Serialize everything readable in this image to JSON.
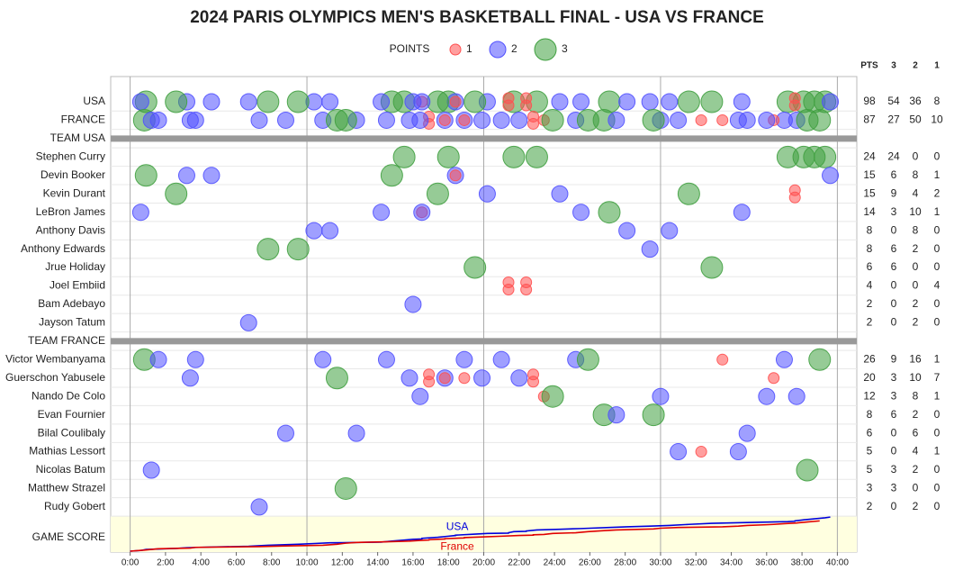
{
  "chart_data": {
    "type": "bubble-timeline",
    "title": "2024 PARIS OLYMPICS MEN'S BASKETBALL FINAL - USA VS FRANCE",
    "legend": {
      "title": "POINTS",
      "items": [
        {
          "value": 1,
          "color": "#ff5050"
        },
        {
          "value": 2,
          "color": "#5050ff"
        },
        {
          "value": 3,
          "color": "#40a040"
        }
      ]
    },
    "columns": [
      "PTS",
      "3",
      "2",
      "1"
    ],
    "xlim": [
      -1.1,
      41.1
    ],
    "xticks": [
      {
        "value": 0,
        "label": "0:00"
      },
      {
        "value": 2,
        "label": "2:00"
      },
      {
        "value": 4,
        "label": "4:00"
      },
      {
        "value": 6,
        "label": "6:00"
      },
      {
        "value": 8,
        "label": "8:00"
      },
      {
        "value": 10,
        "label": "10:00"
      },
      {
        "value": 12,
        "label": "12:00"
      },
      {
        "value": 14,
        "label": "14:00"
      },
      {
        "value": 16,
        "label": "16:00"
      },
      {
        "value": 18,
        "label": "18:00"
      },
      {
        "value": 20,
        "label": "20:00"
      },
      {
        "value": 22,
        "label": "22:00"
      },
      {
        "value": 24,
        "label": "24:00"
      },
      {
        "value": 26,
        "label": "26:00"
      },
      {
        "value": 28,
        "label": "28:00"
      },
      {
        "value": 30,
        "label": "30:00"
      },
      {
        "value": 32,
        "label": "32:00"
      },
      {
        "value": 34,
        "label": "34:00"
      },
      {
        "value": 36,
        "label": "36:00"
      },
      {
        "value": 38,
        "label": "38:00"
      },
      {
        "value": 40,
        "label": "40:00"
      }
    ],
    "score_label": "GAME SCORE",
    "teams": [
      {
        "header": "TEAM USA",
        "name": "USA",
        "line_name": "USA",
        "line_color": "#0000dd",
        "totals": [
          98,
          54,
          36,
          8
        ],
        "players": [
          {
            "name": "Stephen Curry",
            "totals": [
              24,
              24,
              0,
              0
            ],
            "events": [
              {
                "t": 15.5,
                "p": 3
              },
              {
                "t": 18.0,
                "p": 3
              },
              {
                "t": 21.7,
                "p": 3
              },
              {
                "t": 23.0,
                "p": 3
              },
              {
                "t": 37.2,
                "p": 3
              },
              {
                "t": 38.1,
                "p": 3
              },
              {
                "t": 38.7,
                "p": 3
              },
              {
                "t": 39.3,
                "p": 3
              }
            ]
          },
          {
            "name": "Devin Booker",
            "totals": [
              15,
              6,
              8,
              1
            ],
            "events": [
              {
                "t": 0.9,
                "p": 3
              },
              {
                "t": 3.2,
                "p": 2
              },
              {
                "t": 4.6,
                "p": 2
              },
              {
                "t": 14.8,
                "p": 3
              },
              {
                "t": 18.4,
                "p": 2
              },
              {
                "t": 18.4,
                "p": 1
              },
              {
                "t": 39.6,
                "p": 2
              }
            ]
          },
          {
            "name": "Kevin Durant",
            "totals": [
              15,
              9,
              4,
              2
            ],
            "events": [
              {
                "t": 2.6,
                "p": 3
              },
              {
                "t": 17.4,
                "p": 3
              },
              {
                "t": 20.2,
                "p": 2
              },
              {
                "t": 24.3,
                "p": 2
              },
              {
                "t": 31.6,
                "p": 3
              },
              {
                "t": 37.6,
                "p": 1
              },
              {
                "t": 37.6,
                "p": 1
              }
            ]
          },
          {
            "name": "LeBron James",
            "totals": [
              14,
              3,
              10,
              1
            ],
            "events": [
              {
                "t": 0.6,
                "p": 2
              },
              {
                "t": 14.2,
                "p": 2
              },
              {
                "t": 16.5,
                "p": 1
              },
              {
                "t": 16.5,
                "p": 2
              },
              {
                "t": 25.5,
                "p": 2
              },
              {
                "t": 27.1,
                "p": 3
              },
              {
                "t": 34.6,
                "p": 2
              }
            ]
          },
          {
            "name": "Anthony Davis",
            "totals": [
              8,
              0,
              8,
              0
            ],
            "events": [
              {
                "t": 10.4,
                "p": 2
              },
              {
                "t": 11.3,
                "p": 2
              },
              {
                "t": 28.1,
                "p": 2
              },
              {
                "t": 30.5,
                "p": 2
              }
            ]
          },
          {
            "name": "Anthony Edwards",
            "totals": [
              8,
              6,
              2,
              0
            ],
            "events": [
              {
                "t": 7.8,
                "p": 3
              },
              {
                "t": 9.5,
                "p": 3
              },
              {
                "t": 29.4,
                "p": 2
              }
            ]
          },
          {
            "name": "Jrue Holiday",
            "totals": [
              6,
              6,
              0,
              0
            ],
            "events": [
              {
                "t": 19.5,
                "p": 3
              },
              {
                "t": 32.9,
                "p": 3
              }
            ]
          },
          {
            "name": "Joel Embiid",
            "totals": [
              4,
              0,
              0,
              4
            ],
            "events": [
              {
                "t": 21.4,
                "p": 1
              },
              {
                "t": 21.4,
                "p": 1
              },
              {
                "t": 22.4,
                "p": 1
              },
              {
                "t": 22.4,
                "p": 1
              }
            ]
          },
          {
            "name": "Bam Adebayo",
            "totals": [
              2,
              0,
              2,
              0
            ],
            "events": [
              {
                "t": 16.0,
                "p": 2
              }
            ]
          },
          {
            "name": "Jayson Tatum",
            "totals": [
              2,
              0,
              2,
              0
            ],
            "events": [
              {
                "t": 6.7,
                "p": 2
              }
            ]
          }
        ]
      },
      {
        "header": "TEAM FRANCE",
        "name": "FRANCE",
        "line_name": "France",
        "line_color": "#e00000",
        "totals": [
          87,
          27,
          50,
          10
        ],
        "players": [
          {
            "name": "Victor Wembanyama",
            "totals": [
              26,
              9,
              16,
              1
            ],
            "events": [
              {
                "t": 0.8,
                "p": 3
              },
              {
                "t": 1.6,
                "p": 2
              },
              {
                "t": 3.7,
                "p": 2
              },
              {
                "t": 10.9,
                "p": 2
              },
              {
                "t": 14.5,
                "p": 2
              },
              {
                "t": 18.9,
                "p": 2
              },
              {
                "t": 21.0,
                "p": 2
              },
              {
                "t": 25.2,
                "p": 2
              },
              {
                "t": 25.9,
                "p": 3
              },
              {
                "t": 33.5,
                "p": 1
              },
              {
                "t": 37.0,
                "p": 2
              },
              {
                "t": 39.0,
                "p": 3
              }
            ]
          },
          {
            "name": "Guerschon Yabusele",
            "totals": [
              20,
              3,
              10,
              7
            ],
            "events": [
              {
                "t": 3.4,
                "p": 2
              },
              {
                "t": 11.7,
                "p": 3
              },
              {
                "t": 15.8,
                "p": 2
              },
              {
                "t": 16.9,
                "p": 1
              },
              {
                "t": 16.9,
                "p": 1
              },
              {
                "t": 17.8,
                "p": 2
              },
              {
                "t": 17.8,
                "p": 1
              },
              {
                "t": 18.9,
                "p": 1
              },
              {
                "t": 19.9,
                "p": 2
              },
              {
                "t": 22.0,
                "p": 2
              },
              {
                "t": 22.8,
                "p": 1
              },
              {
                "t": 22.8,
                "p": 1
              },
              {
                "t": 36.4,
                "p": 1
              }
            ]
          },
          {
            "name": "Nando De Colo",
            "totals": [
              12,
              3,
              8,
              1
            ],
            "events": [
              {
                "t": 16.4,
                "p": 2
              },
              {
                "t": 23.4,
                "p": 1
              },
              {
                "t": 23.9,
                "p": 3
              },
              {
                "t": 30.0,
                "p": 2
              },
              {
                "t": 36.0,
                "p": 2
              },
              {
                "t": 37.7,
                "p": 2
              }
            ]
          },
          {
            "name": "Evan Fournier",
            "totals": [
              8,
              6,
              2,
              0
            ],
            "events": [
              {
                "t": 26.8,
                "p": 3
              },
              {
                "t": 27.5,
                "p": 2
              },
              {
                "t": 29.6,
                "p": 3
              }
            ]
          },
          {
            "name": "Bilal Coulibaly",
            "totals": [
              6,
              0,
              6,
              0
            ],
            "events": [
              {
                "t": 8.8,
                "p": 2
              },
              {
                "t": 12.8,
                "p": 2
              },
              {
                "t": 34.9,
                "p": 2
              }
            ]
          },
          {
            "name": "Mathias Lessort",
            "totals": [
              5,
              0,
              4,
              1
            ],
            "events": [
              {
                "t": 31.0,
                "p": 2
              },
              {
                "t": 32.3,
                "p": 1
              },
              {
                "t": 34.4,
                "p": 2
              }
            ]
          },
          {
            "name": "Nicolas Batum",
            "totals": [
              5,
              3,
              2,
              0
            ],
            "events": [
              {
                "t": 1.2,
                "p": 2
              },
              {
                "t": 38.3,
                "p": 3
              }
            ]
          },
          {
            "name": "Matthew Strazel",
            "totals": [
              3,
              3,
              0,
              0
            ],
            "events": [
              {
                "t": 12.2,
                "p": 3
              }
            ]
          },
          {
            "name": "Rudy Gobert",
            "totals": [
              2,
              0,
              2,
              0
            ],
            "events": [
              {
                "t": 7.3,
                "p": 2
              }
            ]
          }
        ]
      }
    ]
  }
}
